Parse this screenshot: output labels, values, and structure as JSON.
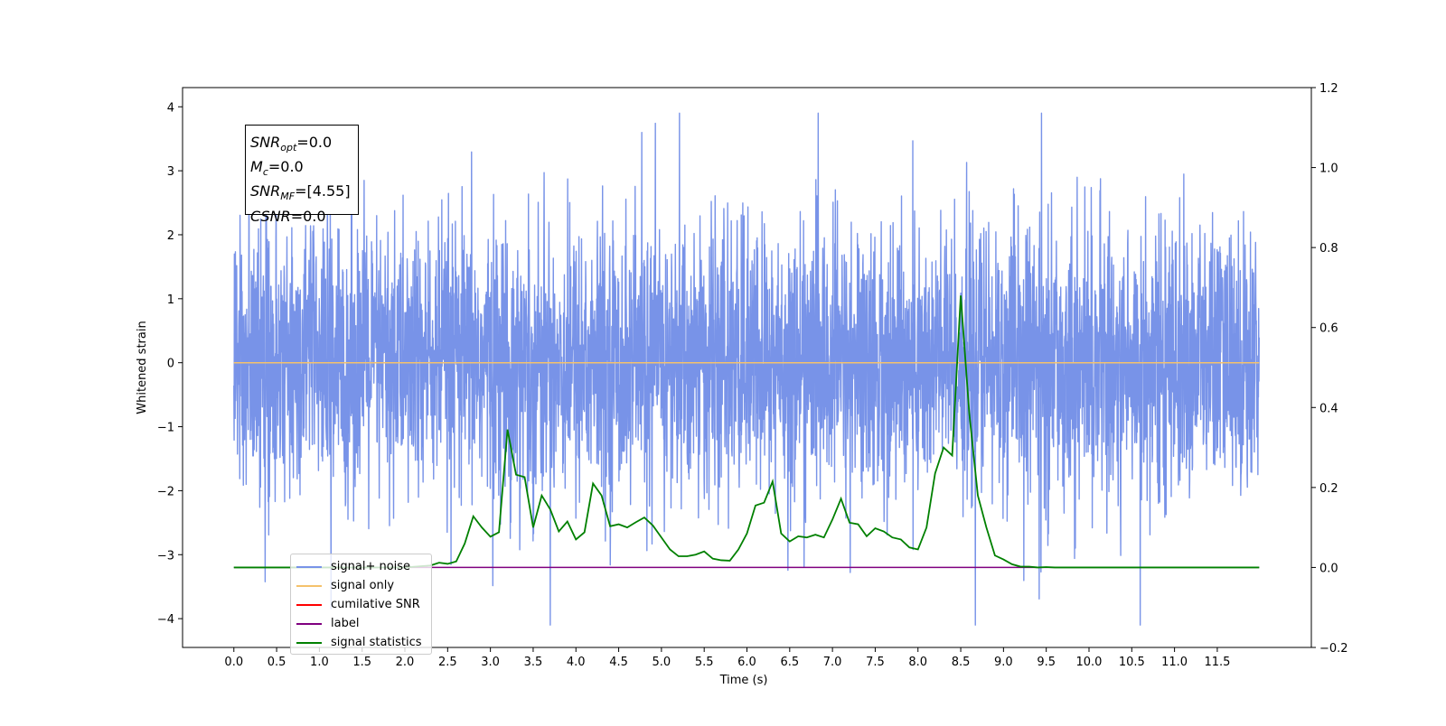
{
  "chart_data": {
    "type": "line",
    "xlabel": "Time (s)",
    "ylabel": "Whitened strain",
    "x_ticks": [
      "0.0",
      "0.5",
      "1.0",
      "1.5",
      "2.0",
      "2.5",
      "3.0",
      "3.5",
      "4.0",
      "4.5",
      "5.0",
      "5.5",
      "6.0",
      "6.5",
      "7.0",
      "7.5",
      "8.0",
      "8.5",
      "9.0",
      "9.5",
      "10.0",
      "10.5",
      "11.0",
      "11.5"
    ],
    "xlim": [
      -0.6,
      12.6
    ],
    "ylim_left": [
      -4.45,
      4.3
    ],
    "ylim_right": [
      -0.2,
      1.2
    ],
    "y_ticks_left": [
      "4",
      "3",
      "2",
      "1",
      "0",
      "−1",
      "−2",
      "−3",
      "−4"
    ],
    "y_ticks_right": [
      "1.2",
      "1.0",
      "0.8",
      "0.6",
      "0.4",
      "0.2",
      "0.0",
      "−0.2"
    ],
    "annotation": [
      {
        "var": "SNR",
        "sub": "opt",
        "value": "=0.0"
      },
      {
        "var": "M",
        "sub": "c",
        "value": "=0.0"
      },
      {
        "var": "SNR",
        "sub": "MF",
        "value": "=[4.55]"
      },
      {
        "var": "CSNR",
        "sub": "",
        "value": "=0.0"
      }
    ],
    "series": [
      {
        "name": "signal+ noise",
        "color": "#7893e8",
        "axis": "left",
        "kind": "whitened noise, samples spanning 0.0-12.0 s, amplitude approx −3 to 4"
      },
      {
        "name": "signal only",
        "color": "#f5c26b",
        "axis": "left",
        "x": [
          0.0,
          11.99
        ],
        "y": [
          0.0,
          0.0
        ]
      },
      {
        "name": "cumilative SNR",
        "color": "#ff0000",
        "axis": "right",
        "x": [],
        "y": []
      },
      {
        "name": "label",
        "color": "#800080",
        "axis": "right",
        "x": [
          0.0,
          11.99
        ],
        "y": [
          0.0,
          0.0
        ]
      },
      {
        "name": "signal statistics",
        "color": "#008000",
        "axis": "right",
        "x": [
          0.0,
          0.5,
          1.0,
          1.5,
          2.0,
          2.3,
          2.4,
          2.5,
          2.6,
          2.7,
          2.8,
          2.9,
          3.0,
          3.1,
          3.2,
          3.3,
          3.4,
          3.5,
          3.6,
          3.7,
          3.8,
          3.9,
          4.0,
          4.1,
          4.2,
          4.3,
          4.4,
          4.5,
          4.6,
          4.7,
          4.8,
          4.9,
          5.0,
          5.1,
          5.2,
          5.3,
          5.4,
          5.5,
          5.6,
          5.7,
          5.8,
          5.9,
          6.0,
          6.1,
          6.2,
          6.3,
          6.4,
          6.5,
          6.6,
          6.7,
          6.8,
          6.9,
          7.0,
          7.1,
          7.2,
          7.3,
          7.4,
          7.5,
          7.6,
          7.7,
          7.8,
          7.9,
          8.0,
          8.1,
          8.2,
          8.3,
          8.4,
          8.5,
          8.6,
          8.7,
          8.8,
          8.9,
          9.0,
          9.1,
          9.2,
          9.3,
          9.4,
          9.5,
          9.6,
          10.0,
          11.0,
          11.99
        ],
        "y": [
          0.0,
          0.0,
          0.0,
          0.0,
          0.0,
          0.005,
          0.012,
          0.009,
          0.015,
          0.06,
          0.128,
          0.1,
          0.077,
          0.088,
          0.345,
          0.232,
          0.226,
          0.1,
          0.18,
          0.145,
          0.09,
          0.115,
          0.07,
          0.088,
          0.21,
          0.18,
          0.103,
          0.108,
          0.1,
          0.113,
          0.125,
          0.105,
          0.075,
          0.045,
          0.028,
          0.028,
          0.032,
          0.04,
          0.022,
          0.018,
          0.017,
          0.045,
          0.085,
          0.155,
          0.162,
          0.215,
          0.085,
          0.065,
          0.078,
          0.075,
          0.082,
          0.075,
          0.12,
          0.172,
          0.112,
          0.108,
          0.078,
          0.098,
          0.09,
          0.075,
          0.07,
          0.05,
          0.045,
          0.1,
          0.235,
          0.3,
          0.28,
          0.68,
          0.385,
          0.18,
          0.1,
          0.03,
          0.02,
          0.008,
          0.002,
          0.002,
          0.0,
          0.001,
          0.0,
          0.0,
          0.0,
          0.0
        ]
      }
    ]
  }
}
